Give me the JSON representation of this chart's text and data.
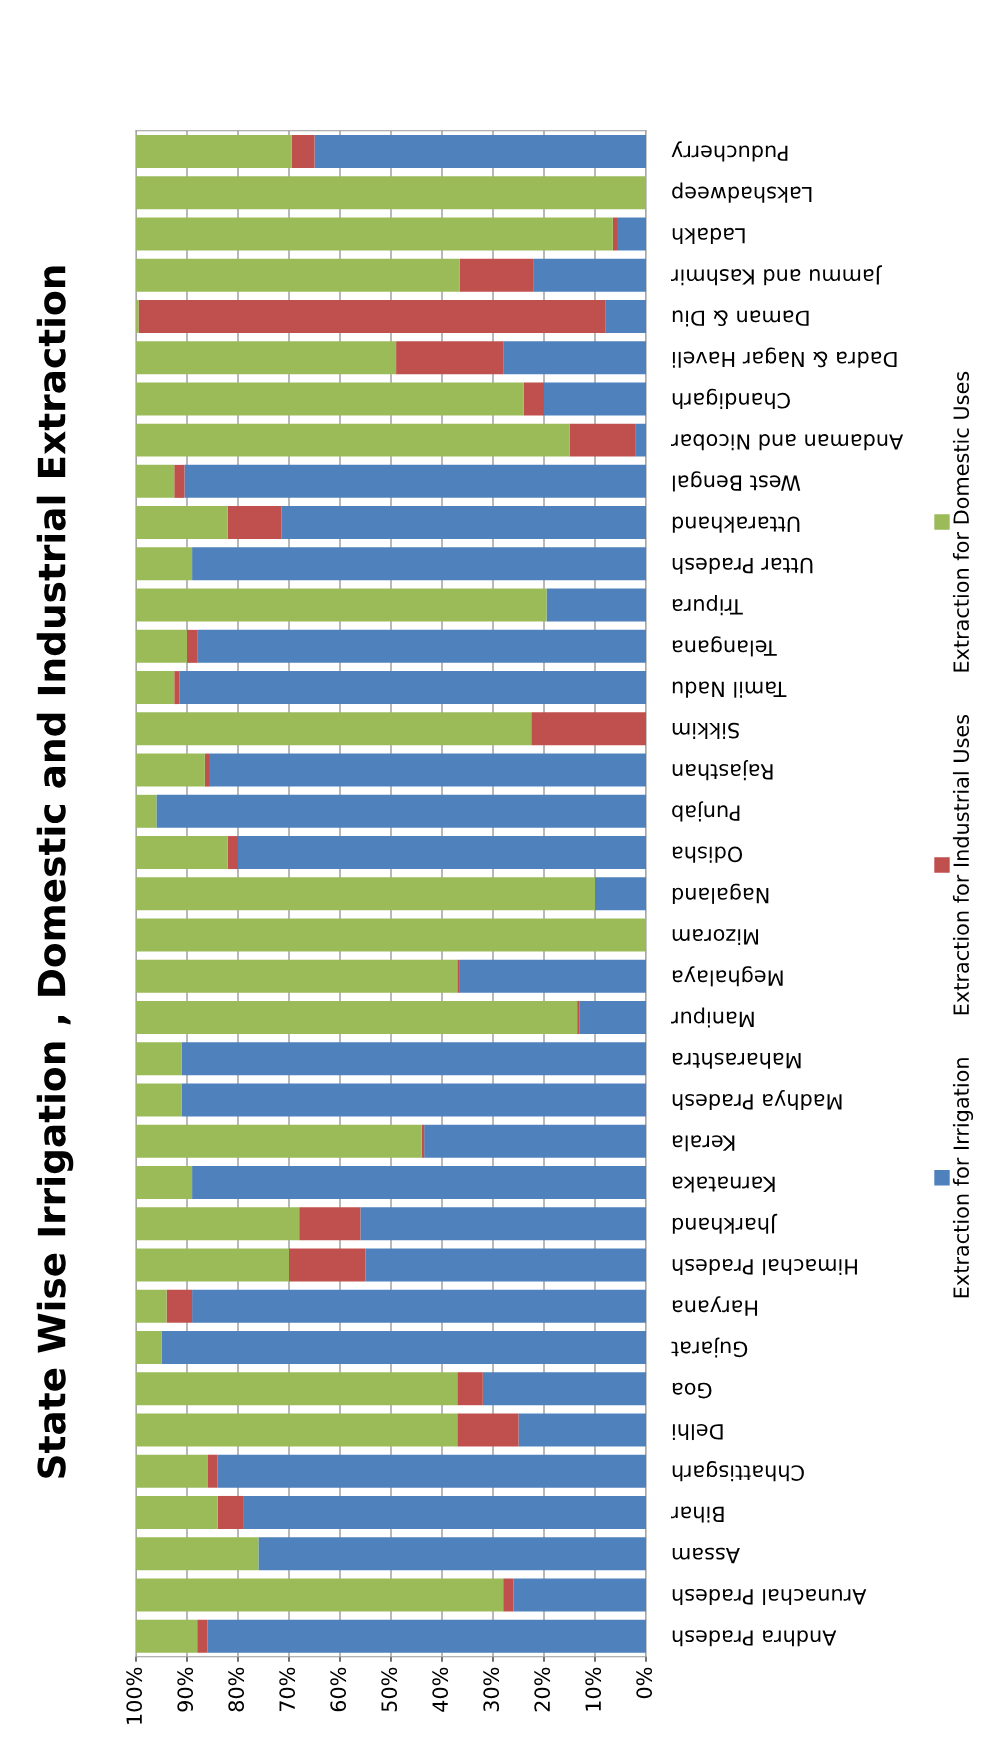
{
  "chart_data": {
    "type": "bar",
    "orientation": "horizontal",
    "stacked": true,
    "title": "State Wise Irrigation , Domestic and Industrial Extraction",
    "categories": [
      "Puducherry",
      "Lakshadweep",
      "Ladakh",
      "Jammu and Kashmir",
      "Daman & Diu",
      "Dadra & Nagar Haveli",
      "Chandigarh",
      "Andaman and Nicobar",
      "West Bengal",
      "Uttarakhand",
      "Uttar Pradesh",
      "Tripura",
      "Telangana",
      "Tamil Nadu",
      "Sikkim",
      "Rajasthan",
      "Punjab",
      "Odisha",
      "Nagaland",
      "Mizoram",
      "Meghalaya",
      "Manipur",
      "Maharashtra",
      "Madhya Pradesh",
      "Kerala",
      "Karnataka",
      "Jharkhand",
      "Himachal Pradesh",
      "Haryana",
      "Gujarat",
      "Goa",
      "Delhi",
      "Chhattisgarh",
      "Bihar",
      "Assam",
      "Arunachal Pradesh",
      "Andhra Pradesh"
    ],
    "series": [
      {
        "name": "Extraction for Irrigation",
        "color": "#4f81bd",
        "values": [
          65,
          0,
          5.5,
          22,
          8,
          28,
          20,
          2,
          90.5,
          71.5,
          89,
          19.5,
          88,
          91.5,
          0,
          85.5,
          96,
          80,
          10,
          0,
          36.5,
          13,
          91,
          91,
          43.5,
          89,
          56,
          55,
          89,
          95,
          32,
          25,
          84,
          79,
          76,
          26,
          86
        ]
      },
      {
        "name": "Extraction for Industrial Uses",
        "color": "#c0504d",
        "values": [
          4.5,
          0,
          1,
          14.5,
          91.5,
          21,
          4,
          13,
          2,
          10.5,
          0,
          0,
          2,
          1,
          22.5,
          1,
          0,
          2,
          0,
          0,
          0.5,
          0.5,
          0,
          0,
          0.5,
          0,
          12,
          15,
          5,
          0,
          5,
          12,
          2,
          5,
          0,
          2,
          2
        ]
      },
      {
        "name": "Extraction for Domestic Uses",
        "color": "#9bbb59",
        "values": [
          30.5,
          100,
          93.5,
          63.5,
          0.5,
          51,
          76,
          85,
          7.5,
          18,
          11,
          80.5,
          10,
          7.5,
          77.5,
          13.5,
          4,
          18,
          90,
          100,
          63,
          86.5,
          9,
          9,
          56,
          11,
          32,
          30,
          6,
          5,
          63,
          63,
          14,
          16,
          24,
          72,
          12
        ]
      }
    ],
    "xlim": [
      100,
      0
    ],
    "xticks": [
      {
        "value": 0,
        "label": "0%"
      },
      {
        "value": 10,
        "label": "10%"
      },
      {
        "value": 20,
        "label": "20%"
      },
      {
        "value": 30,
        "label": "30%"
      },
      {
        "value": 40,
        "label": "40%"
      },
      {
        "value": 50,
        "label": "50%"
      },
      {
        "value": 60,
        "label": "60%"
      },
      {
        "value": 70,
        "label": "70%"
      },
      {
        "value": 80,
        "label": "80%"
      },
      {
        "value": 90,
        "label": "90%"
      },
      {
        "value": 100,
        "label": "100%"
      }
    ],
    "grid": "x",
    "legend": "right"
  }
}
